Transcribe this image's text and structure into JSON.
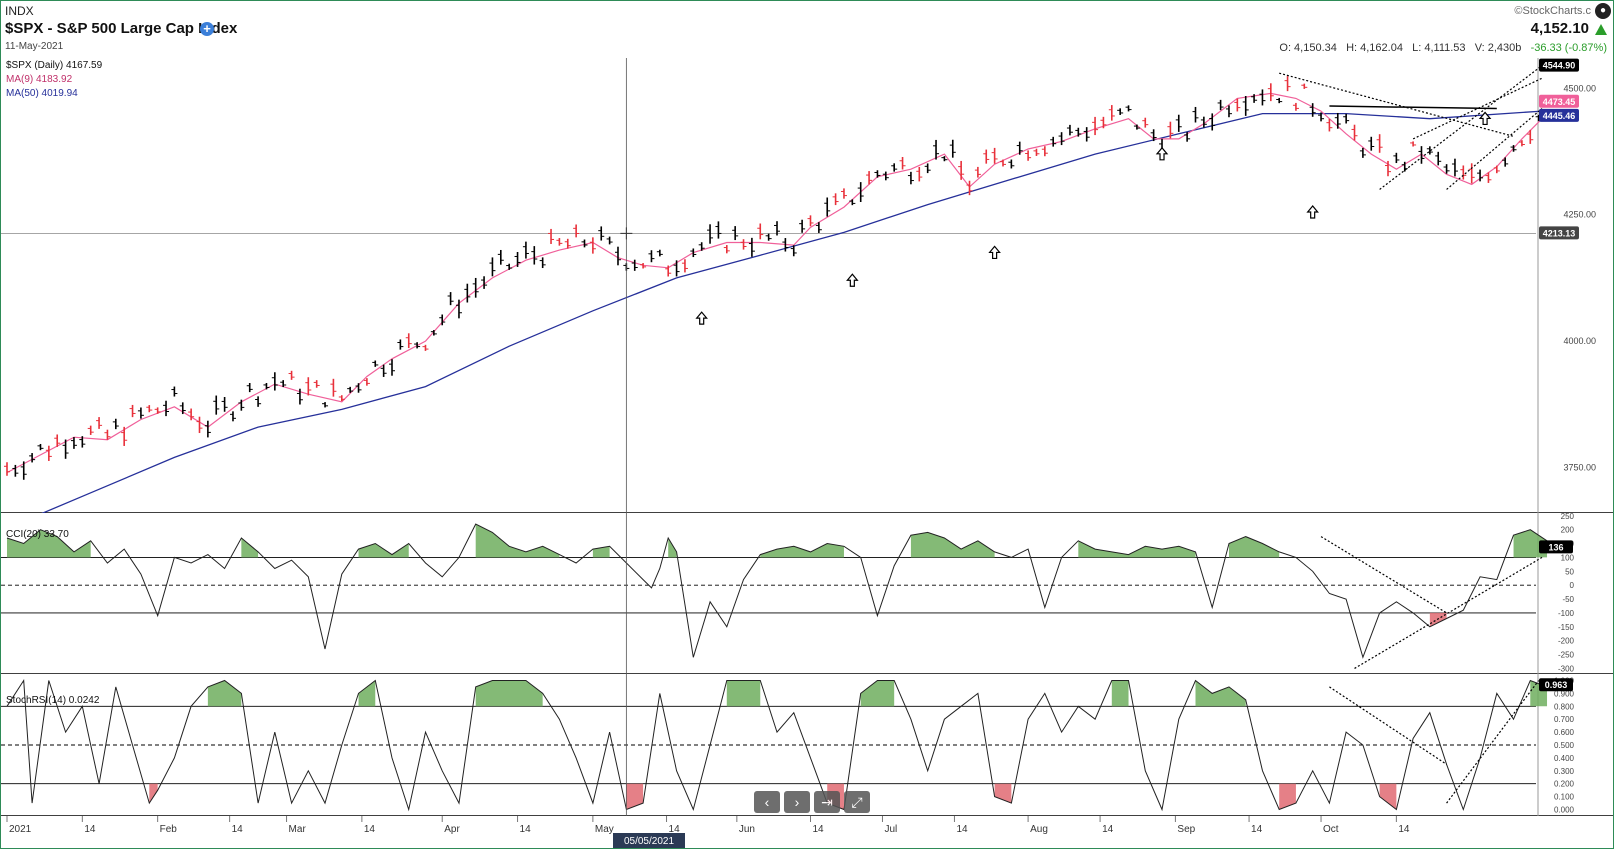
{
  "header": {
    "exchange": "INDX",
    "title": "$SPX - S&P 500 Large Cap Index",
    "date": "11-May-2021",
    "brand": "©StockCharts.c",
    "last_price": "4,152.10",
    "open": "O: 4,150.34",
    "high": "H: 4,162.04",
    "low": "L: 4,111.53",
    "volume": "V: 2,430b",
    "change": "-36.33 (-0.87%)"
  },
  "icons": {
    "add": "plus-circle-icon",
    "brand": "stockcharts-logo-icon",
    "direction": "triangle-up-icon"
  },
  "colors": {
    "up_bar": "#000000",
    "down_bar": "#e8303a",
    "ma9": "#f0609a",
    "ma50": "#26309a",
    "positive_fill": "#6fae5e",
    "negative_fill": "#e06a72"
  },
  "legend": {
    "price": "$SPX (Daily) 4167.59",
    "ma9": "MA(9) 4183.92",
    "ma50": "MA(50) 4019.94",
    "cci": "CCI(20) 33.70",
    "stochrsi": "StochRSI(14) 0.0242"
  },
  "navigation": {
    "prev": "‹",
    "next": "›",
    "end": "⇥",
    "collapse": "⤢"
  },
  "crosshair_label": "05/05/2021",
  "chart_data": [
    {
      "type": "ohlc",
      "panel": "price",
      "series_names": [
        "$SPX (Daily)",
        "MA(9)",
        "MA(50)"
      ],
      "x_ticks": [
        "2021",
        "14",
        "Feb",
        "14",
        "Mar",
        "14",
        "Apr",
        "14",
        "May",
        "14",
        "Jun",
        "14",
        "Jul",
        "14",
        "Aug",
        "14",
        "Sep",
        "14",
        "Oct",
        "14"
      ],
      "y_ticks": [
        "3750.00",
        "4000.00",
        "4250.00",
        "4500.00"
      ],
      "price_labels": [
        "4544.90",
        "4473.45",
        "4445.46",
        "4213.13"
      ],
      "ylim": [
        3660,
        4560
      ],
      "annotation_arrow_values": [
        4085,
        4160,
        4215,
        4410,
        4295,
        4480
      ],
      "ma9_points": [
        [
          0,
          3740
        ],
        [
          20,
          3775
        ],
        [
          40,
          3810
        ],
        [
          60,
          3805
        ],
        [
          80,
          3845
        ],
        [
          100,
          3870
        ],
        [
          120,
          3830
        ],
        [
          140,
          3880
        ],
        [
          160,
          3915
        ],
        [
          180,
          3895
        ],
        [
          200,
          3880
        ],
        [
          215,
          3930
        ],
        [
          230,
          3965
        ],
        [
          250,
          4000
        ],
        [
          270,
          4075
        ],
        [
          290,
          4125
        ],
        [
          310,
          4160
        ],
        [
          330,
          4180
        ],
        [
          350,
          4195
        ],
        [
          365,
          4165
        ],
        [
          380,
          4150
        ],
        [
          395,
          4145
        ],
        [
          410,
          4175
        ],
        [
          430,
          4195
        ],
        [
          450,
          4195
        ],
        [
          470,
          4190
        ],
        [
          480,
          4225
        ],
        [
          500,
          4265
        ],
        [
          520,
          4325
        ],
        [
          540,
          4340
        ],
        [
          560,
          4370
        ],
        [
          575,
          4305
        ],
        [
          590,
          4350
        ],
        [
          610,
          4380
        ],
        [
          630,
          4395
        ],
        [
          650,
          4420
        ],
        [
          670,
          4440
        ],
        [
          685,
          4400
        ],
        [
          700,
          4400
        ],
        [
          715,
          4430
        ],
        [
          735,
          4480
        ],
        [
          755,
          4490
        ],
        [
          770,
          4480
        ],
        [
          785,
          4455
        ],
        [
          800,
          4410
        ],
        [
          815,
          4370
        ],
        [
          830,
          4340
        ],
        [
          845,
          4370
        ],
        [
          860,
          4330
        ],
        [
          875,
          4310
        ],
        [
          890,
          4345
        ],
        [
          905,
          4400
        ],
        [
          917,
          4440
        ]
      ],
      "ma50_points": [
        [
          0,
          3630
        ],
        [
          50,
          3700
        ],
        [
          100,
          3770
        ],
        [
          150,
          3830
        ],
        [
          200,
          3865
        ],
        [
          250,
          3910
        ],
        [
          300,
          3990
        ],
        [
          350,
          4060
        ],
        [
          400,
          4125
        ],
        [
          450,
          4170
        ],
        [
          500,
          4215
        ],
        [
          550,
          4270
        ],
        [
          600,
          4320
        ],
        [
          650,
          4370
        ],
        [
          700,
          4410
        ],
        [
          750,
          4450
        ],
        [
          800,
          4450
        ],
        [
          850,
          4440
        ],
        [
          917,
          4455
        ]
      ]
    },
    {
      "type": "line",
      "panel": "indicator",
      "series_names": [
        "CCI(20)"
      ],
      "y_ticks": [
        "250",
        "200",
        "150",
        "100",
        "50",
        "0",
        "-50",
        "-100",
        "-150",
        "-200",
        "-250",
        "-300"
      ],
      "ylim": [
        -320,
        260
      ],
      "reference_lines": [
        100,
        0,
        -100
      ],
      "last_label": "136",
      "points": [
        [
          0,
          170
        ],
        [
          10,
          150
        ],
        [
          20,
          200
        ],
        [
          30,
          175
        ],
        [
          40,
          120
        ],
        [
          50,
          160
        ],
        [
          60,
          80
        ],
        [
          70,
          130
        ],
        [
          80,
          40
        ],
        [
          90,
          -110
        ],
        [
          100,
          100
        ],
        [
          110,
          80
        ],
        [
          120,
          110
        ],
        [
          130,
          60
        ],
        [
          140,
          170
        ],
        [
          150,
          120
        ],
        [
          160,
          60
        ],
        [
          170,
          90
        ],
        [
          180,
          30
        ],
        [
          190,
          -230
        ],
        [
          200,
          40
        ],
        [
          210,
          130
        ],
        [
          220,
          150
        ],
        [
          230,
          110
        ],
        [
          240,
          150
        ],
        [
          250,
          80
        ],
        [
          260,
          30
        ],
        [
          270,
          100
        ],
        [
          280,
          220
        ],
        [
          290,
          190
        ],
        [
          300,
          140
        ],
        [
          310,
          120
        ],
        [
          320,
          140
        ],
        [
          330,
          110
        ],
        [
          340,
          80
        ],
        [
          350,
          130
        ],
        [
          360,
          140
        ],
        [
          370,
          80
        ],
        [
          380,
          20
        ],
        [
          385,
          -10
        ],
        [
          390,
          60
        ],
        [
          395,
          170
        ],
        [
          400,
          120
        ],
        [
          410,
          -260
        ],
        [
          420,
          -60
        ],
        [
          430,
          -150
        ],
        [
          440,
          20
        ],
        [
          450,
          110
        ],
        [
          460,
          130
        ],
        [
          470,
          140
        ],
        [
          480,
          120
        ],
        [
          490,
          150
        ],
        [
          500,
          140
        ],
        [
          510,
          100
        ],
        [
          520,
          -110
        ],
        [
          530,
          70
        ],
        [
          540,
          180
        ],
        [
          550,
          190
        ],
        [
          560,
          170
        ],
        [
          570,
          130
        ],
        [
          580,
          160
        ],
        [
          590,
          120
        ],
        [
          600,
          100
        ],
        [
          610,
          130
        ],
        [
          620,
          -80
        ],
        [
          630,
          100
        ],
        [
          640,
          160
        ],
        [
          650,
          130
        ],
        [
          660,
          120
        ],
        [
          670,
          110
        ],
        [
          680,
          140
        ],
        [
          690,
          130
        ],
        [
          700,
          140
        ],
        [
          710,
          120
        ],
        [
          720,
          -80
        ],
        [
          730,
          150
        ],
        [
          740,
          175
        ],
        [
          750,
          150
        ],
        [
          760,
          120
        ],
        [
          770,
          100
        ],
        [
          780,
          50
        ],
        [
          790,
          -30
        ],
        [
          800,
          -50
        ],
        [
          810,
          -260
        ],
        [
          820,
          -100
        ],
        [
          830,
          -60
        ],
        [
          840,
          -100
        ],
        [
          850,
          -150
        ],
        [
          860,
          -120
        ],
        [
          870,
          -90
        ],
        [
          880,
          30
        ],
        [
          890,
          20
        ],
        [
          900,
          180
        ],
        [
          910,
          200
        ],
        [
          920,
          160
        ]
      ]
    },
    {
      "type": "line",
      "panel": "indicator",
      "series_names": [
        "StochRSI(14)"
      ],
      "y_ticks": [
        "1.000",
        "0.900",
        "0.800",
        "0.700",
        "0.600",
        "0.500",
        "0.400",
        "0.300",
        "0.200",
        "0.100",
        "0.000"
      ],
      "ylim": [
        -0.05,
        1.05
      ],
      "reference_lines": [
        0.8,
        0.5,
        0.2
      ],
      "last_label": "0.963",
      "points": [
        [
          0,
          0.8
        ],
        [
          10,
          1.0
        ],
        [
          15,
          0.05
        ],
        [
          25,
          1.0
        ],
        [
          35,
          0.6
        ],
        [
          45,
          0.8
        ],
        [
          55,
          0.2
        ],
        [
          65,
          0.95
        ],
        [
          75,
          0.5
        ],
        [
          85,
          0.05
        ],
        [
          90,
          0.15
        ],
        [
          100,
          0.4
        ],
        [
          110,
          0.8
        ],
        [
          120,
          0.95
        ],
        [
          130,
          1.0
        ],
        [
          140,
          0.9
        ],
        [
          150,
          0.05
        ],
        [
          160,
          0.6
        ],
        [
          170,
          0.05
        ],
        [
          180,
          0.3
        ],
        [
          190,
          0.05
        ],
        [
          200,
          0.5
        ],
        [
          210,
          0.9
        ],
        [
          220,
          1.0
        ],
        [
          230,
          0.4
        ],
        [
          240,
          0.0
        ],
        [
          250,
          0.6
        ],
        [
          260,
          0.3
        ],
        [
          270,
          0.05
        ],
        [
          280,
          0.95
        ],
        [
          290,
          1.0
        ],
        [
          300,
          1.0
        ],
        [
          310,
          1.0
        ],
        [
          320,
          0.9
        ],
        [
          330,
          0.7
        ],
        [
          340,
          0.4
        ],
        [
          350,
          0.05
        ],
        [
          360,
          0.6
        ],
        [
          370,
          0.0
        ],
        [
          380,
          0.05
        ],
        [
          390,
          0.9
        ],
        [
          400,
          0.3
        ],
        [
          410,
          0.0
        ],
        [
          420,
          0.5
        ],
        [
          430,
          1.0
        ],
        [
          440,
          1.0
        ],
        [
          450,
          1.0
        ],
        [
          460,
          0.6
        ],
        [
          470,
          0.75
        ],
        [
          480,
          0.4
        ],
        [
          490,
          0.05
        ],
        [
          500,
          0.0
        ],
        [
          510,
          0.9
        ],
        [
          520,
          1.0
        ],
        [
          530,
          1.0
        ],
        [
          540,
          0.7
        ],
        [
          550,
          0.3
        ],
        [
          560,
          0.7
        ],
        [
          570,
          0.8
        ],
        [
          580,
          0.9
        ],
        [
          590,
          0.1
        ],
        [
          600,
          0.05
        ],
        [
          610,
          0.7
        ],
        [
          620,
          0.9
        ],
        [
          630,
          0.6
        ],
        [
          640,
          0.8
        ],
        [
          650,
          0.7
        ],
        [
          660,
          1.0
        ],
        [
          670,
          1.0
        ],
        [
          680,
          0.3
        ],
        [
          690,
          0.0
        ],
        [
          700,
          0.7
        ],
        [
          710,
          1.0
        ],
        [
          720,
          0.9
        ],
        [
          730,
          0.95
        ],
        [
          740,
          0.85
        ],
        [
          750,
          0.3
        ],
        [
          760,
          0.0
        ],
        [
          770,
          0.05
        ],
        [
          780,
          0.3
        ],
        [
          790,
          0.05
        ],
        [
          800,
          0.6
        ],
        [
          810,
          0.5
        ],
        [
          820,
          0.1
        ],
        [
          830,
          0.0
        ],
        [
          840,
          0.55
        ],
        [
          850,
          0.75
        ],
        [
          860,
          0.35
        ],
        [
          870,
          0.0
        ],
        [
          880,
          0.4
        ],
        [
          890,
          0.9
        ],
        [
          900,
          0.7
        ],
        [
          910,
          1.0
        ],
        [
          920,
          0.95
        ]
      ]
    }
  ]
}
